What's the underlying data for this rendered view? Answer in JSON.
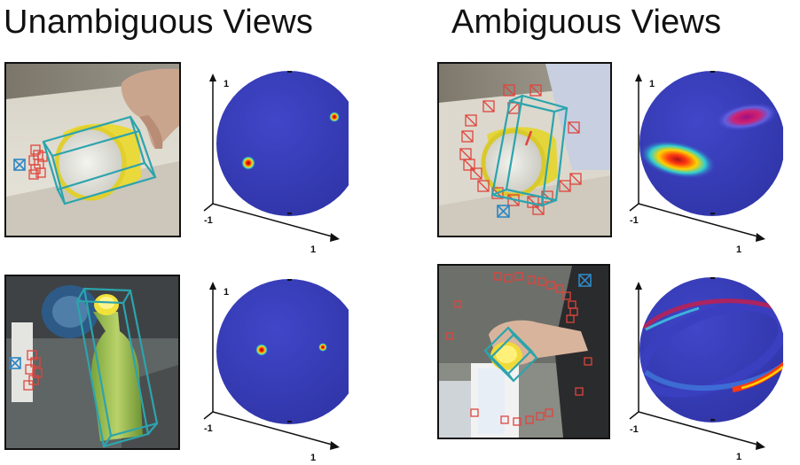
{
  "headings": {
    "left": "Unambiguous Views",
    "right": "Ambiguous Views"
  },
  "axis_labels": {
    "z_top": "1",
    "x_min": "-1",
    "y_max": "1"
  },
  "colors": {
    "sphere_base": "#3a3fc0",
    "candidate_box": "#e0443c",
    "selected_box": "#2f86c2",
    "bbox3d": "#2ca4ad",
    "heat_peak": "#c0101a"
  },
  "panels": [
    {
      "id": "unambiguous-top",
      "photo_scene": "cup-on-table",
      "distribution": "two-sharp-peaks"
    },
    {
      "id": "ambiguous-top",
      "photo_scene": "cup-on-table",
      "distribution": "two-broad-blobs"
    },
    {
      "id": "unambiguous-bottom",
      "photo_scene": "green-bottle",
      "distribution": "two-sharp-peaks"
    },
    {
      "id": "ambiguous-bottom",
      "photo_scene": "can-in-hand",
      "distribution": "ring-band"
    }
  ]
}
